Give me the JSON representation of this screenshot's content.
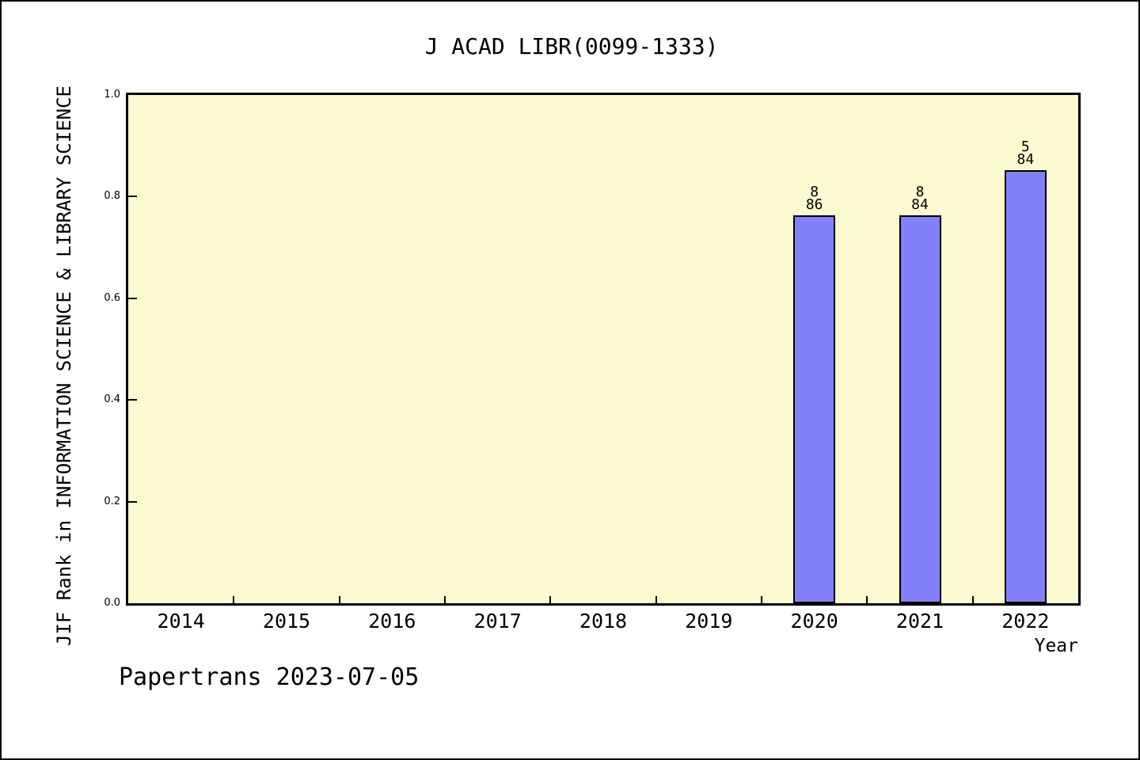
{
  "footer": {
    "credit": "Papertrans 2023-07-05"
  },
  "chart_data": {
    "type": "bar",
    "title": "J ACAD LIBR(0099-1333)",
    "xlabel": "Year",
    "ylabel": "JIF Rank in INFORMATION SCIENCE & LIBRARY SCIENCE",
    "categories": [
      "2014",
      "2015",
      "2016",
      "2017",
      "2018",
      "2019",
      "2020",
      "2021",
      "2022"
    ],
    "yticks": [
      "0.0",
      "0.2",
      "0.4",
      "0.6",
      "0.8",
      "1.0"
    ],
    "ylim": [
      0.0,
      1.0
    ],
    "grid": false,
    "legend": false,
    "bars": [
      {
        "year": "2020",
        "value": 0.763,
        "rank": "8",
        "total": "86"
      },
      {
        "year": "2021",
        "value": 0.763,
        "rank": "8",
        "total": "84"
      },
      {
        "year": "2022",
        "value": 0.852,
        "rank": "5",
        "total": "84"
      }
    ],
    "colors": {
      "bar_fill": "#8380FB",
      "bar_outline": "#000000",
      "plot_background": "#FCFAD0",
      "page_background": "#FFFFFF",
      "text": "#000000"
    }
  }
}
